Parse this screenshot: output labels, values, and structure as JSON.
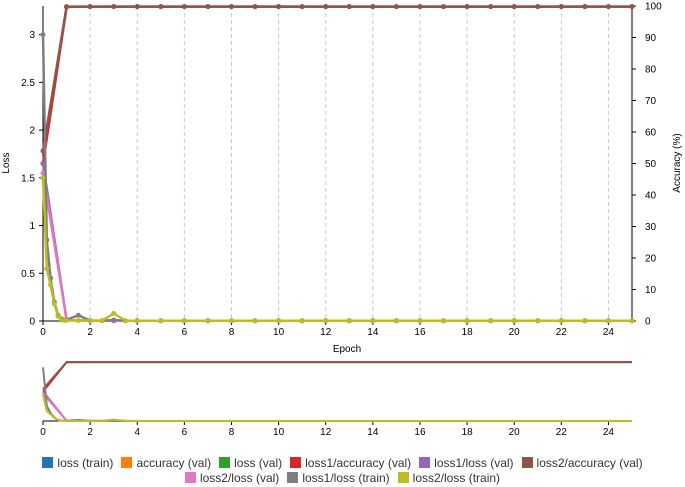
{
  "chart_data": [
    {
      "type": "line",
      "title": "",
      "xlabel": "Epoch",
      "ylabel": "Loss",
      "ylabel_right": "Accuracy (%)",
      "xlim": [
        0,
        25
      ],
      "ylim": [
        0,
        3.3
      ],
      "ylim_right": [
        0,
        100
      ],
      "x_ticks": [
        0,
        2,
        4,
        6,
        8,
        10,
        12,
        14,
        16,
        18,
        20,
        22,
        24
      ],
      "y_ticks": [
        0,
        0.5,
        1,
        1.5,
        2,
        2.5,
        3
      ],
      "y_ticks_right": [
        0,
        10,
        20,
        30,
        40,
        50,
        60,
        70,
        80,
        90,
        100
      ],
      "grid": "vertical dashed",
      "legend_position": "bottom",
      "series": [
        {
          "name": "loss1/accuracy (val)",
          "color": "#d62728",
          "axis": "right",
          "x": [
            0,
            1,
            2,
            3,
            4,
            5,
            6,
            7,
            8,
            9,
            10,
            11,
            12,
            13,
            14,
            15,
            16,
            17,
            18,
            19,
            20,
            21,
            22,
            23,
            24,
            25
          ],
          "y": [
            50,
            99.7,
            99.8,
            99.8,
            99.8,
            99.8,
            99.8,
            99.8,
            99.8,
            99.8,
            99.8,
            99.8,
            99.8,
            99.8,
            99.8,
            99.8,
            99.8,
            99.8,
            99.8,
            99.8,
            99.8,
            99.8,
            99.8,
            99.8,
            99.8,
            99.8
          ]
        },
        {
          "name": "loss2/accuracy (val)",
          "color": "#8c564b",
          "axis": "right",
          "x": [
            0,
            1,
            2,
            3,
            4,
            5,
            6,
            7,
            8,
            9,
            10,
            11,
            12,
            13,
            14,
            15,
            16,
            17,
            18,
            19,
            20,
            21,
            22,
            23,
            24,
            25
          ],
          "y": [
            54,
            99.8,
            99.8,
            99.8,
            99.8,
            99.8,
            99.8,
            99.8,
            99.8,
            99.8,
            99.8,
            99.8,
            99.8,
            99.8,
            99.8,
            99.8,
            99.8,
            99.8,
            99.8,
            99.8,
            99.8,
            99.8,
            99.8,
            99.8,
            99.8,
            99.8
          ]
        },
        {
          "name": "loss1/loss (val)",
          "color": "#9467bd",
          "axis": "left",
          "x": [
            0,
            1,
            2,
            3,
            4,
            5,
            6,
            7,
            8,
            9,
            10,
            11,
            12,
            13,
            14,
            15,
            16,
            17,
            18,
            19,
            20,
            21,
            22,
            23,
            24,
            25
          ],
          "y": [
            1.65,
            0.01,
            0.003,
            0.002,
            0.002,
            0.002,
            0.002,
            0.002,
            0.002,
            0.002,
            0.002,
            0.002,
            0.002,
            0.002,
            0.002,
            0.002,
            0.002,
            0.002,
            0.002,
            0.002,
            0.002,
            0.002,
            0.002,
            0.002,
            0.002,
            0.002
          ]
        },
        {
          "name": "loss2/loss (val)",
          "color": "#e377c2",
          "axis": "left",
          "x": [
            0,
            1,
            2,
            3,
            4,
            5,
            6,
            7,
            8,
            9,
            10,
            11,
            12,
            13,
            14,
            15,
            16,
            17,
            18,
            19,
            20,
            21,
            22,
            23,
            24,
            25
          ],
          "y": [
            1.55,
            0.01,
            0.003,
            0.002,
            0.002,
            0.002,
            0.002,
            0.002,
            0.002,
            0.002,
            0.002,
            0.002,
            0.002,
            0.002,
            0.002,
            0.002,
            0.002,
            0.002,
            0.002,
            0.002,
            0.002,
            0.002,
            0.002,
            0.002,
            0.002,
            0.002
          ]
        },
        {
          "name": "loss1/loss (train)",
          "color": "#7f7f7f",
          "axis": "left",
          "x": [
            0,
            0.16,
            0.32,
            0.48,
            0.64,
            0.8,
            0.96,
            1.5,
            2,
            2.5,
            3,
            3.5,
            4,
            5,
            6,
            7,
            8,
            9,
            10,
            11,
            12,
            13,
            14,
            15,
            16,
            17,
            18,
            19,
            20,
            21,
            22,
            23,
            24,
            25
          ],
          "y": [
            3.0,
            0.85,
            0.45,
            0.2,
            0.06,
            0.02,
            0.01,
            0.06,
            0.005,
            0.003,
            0.01,
            0.003,
            0.002,
            0.002,
            0.002,
            0.002,
            0.002,
            0.002,
            0.002,
            0.002,
            0.002,
            0.002,
            0.002,
            0.002,
            0.002,
            0.002,
            0.002,
            0.002,
            0.002,
            0.002,
            0.002,
            0.002,
            0.002,
            0.002
          ]
        },
        {
          "name": "loss2/loss (train)",
          "color": "#bcbd22",
          "axis": "left",
          "x": [
            0,
            0.16,
            0.32,
            0.48,
            0.64,
            0.8,
            0.96,
            1.5,
            2,
            2.5,
            3,
            3.5,
            4,
            5,
            6,
            7,
            8,
            9,
            10,
            11,
            12,
            13,
            14,
            15,
            16,
            17,
            18,
            19,
            20,
            21,
            22,
            23,
            24,
            25
          ],
          "y": [
            1.5,
            0.55,
            0.38,
            0.18,
            0.05,
            0.01,
            0.005,
            0.005,
            0.004,
            0.003,
            0.08,
            0.003,
            0.002,
            0.002,
            0.002,
            0.002,
            0.002,
            0.002,
            0.002,
            0.002,
            0.002,
            0.002,
            0.002,
            0.002,
            0.002,
            0.002,
            0.002,
            0.002,
            0.002,
            0.002,
            0.002,
            0.002,
            0.002,
            0.002
          ]
        }
      ]
    },
    {
      "type": "line",
      "title": "",
      "xlabel": "",
      "ylabel": "",
      "xlim": [
        0,
        25
      ],
      "x_ticks": [
        0,
        2,
        4,
        6,
        8,
        10,
        12,
        14,
        16,
        18,
        20,
        22,
        24
      ],
      "note_role": "overview"
    }
  ],
  "legend": {
    "items": [
      {
        "label": "loss (train)",
        "color": "#1f77b4"
      },
      {
        "label": "accuracy (val)",
        "color": "#ff7f0e"
      },
      {
        "label": "loss (val)",
        "color": "#2ca02c"
      },
      {
        "label": "loss1/accuracy (val)",
        "color": "#d62728"
      },
      {
        "label": "loss1/loss (val)",
        "color": "#9467bd"
      },
      {
        "label": "loss2/accuracy (val)",
        "color": "#8c564b"
      },
      {
        "label": "loss2/loss (val)",
        "color": "#e377c2"
      },
      {
        "label": "loss1/loss (train)",
        "color": "#7f7f7f"
      },
      {
        "label": "loss2/loss (train)",
        "color": "#bcbd22"
      }
    ]
  }
}
